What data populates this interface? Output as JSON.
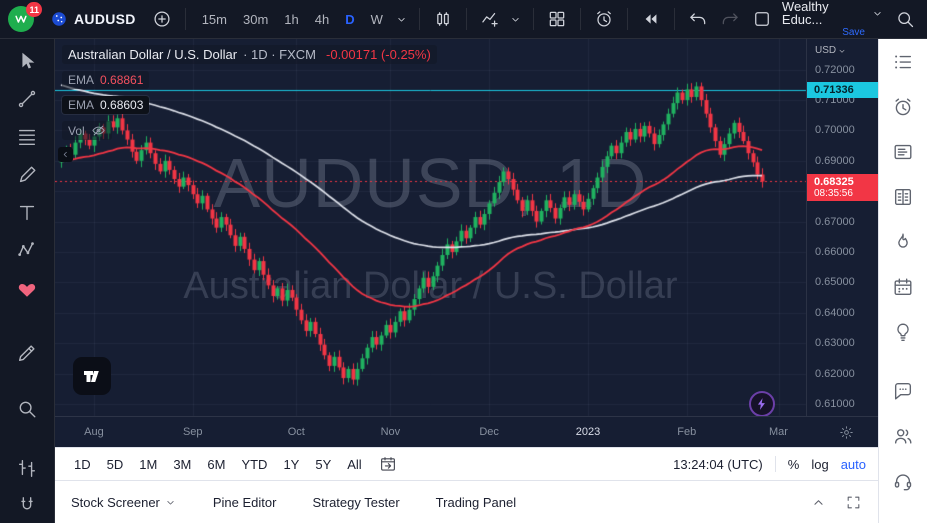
{
  "topbar": {
    "notification_count": "11",
    "symbol": "AUDUSD",
    "timeframes": [
      "15m",
      "30m",
      "1h",
      "4h",
      "D",
      "W"
    ],
    "active_timeframe": "D",
    "account_name": "Wealthy Educ...",
    "save_label": "Save",
    "icons": [
      "app-logo",
      "plus-circle",
      "chevron-down",
      "candles",
      "indicators",
      "layout-grid",
      "alert-clock",
      "replay",
      "undo",
      "redo",
      "layout-square",
      "search"
    ]
  },
  "left_toolbar": {
    "icons": [
      "cursor",
      "trend-line",
      "fib-retracement",
      "brush",
      "text",
      "xabcd-pattern",
      "emoji-heart",
      "ruler-pencil",
      "zoom",
      "bars-pattern",
      "magnet"
    ]
  },
  "right_sidebar": {
    "icons": [
      "watchlist",
      "alert-clock",
      "data-window",
      "dom",
      "flame",
      "calendar",
      "idea-bulb",
      "chat",
      "people",
      "headset"
    ]
  },
  "chart": {
    "legend": {
      "title": "Australian Dollar / U.S. Dollar",
      "meta": "· 1D · FXCM",
      "change": "-0.00171 (-0.25%)",
      "ema1_label": "EMA",
      "ema1_value": "0.68861",
      "ema2_label": "EMA",
      "ema2_value": "0.68603",
      "vol_label": "Vol"
    },
    "watermark_line1": "AUDUSD, 1D",
    "watermark_line2": "Australian Dollar / U.S. Dollar",
    "axis_currency": "USD",
    "price_labels": [
      "0.72000",
      "0.71000",
      "0.70000",
      "0.69000",
      "0.68000",
      "0.67000",
      "0.66000",
      "0.65000",
      "0.64000",
      "0.63000",
      "0.62000",
      "0.61000"
    ],
    "badges": {
      "upper_price": "0.71336",
      "last_price": "0.68325",
      "countdown": "08:35:56"
    },
    "time_labels": [
      "Aug",
      "Sep",
      "Oct",
      "Nov",
      "Dec",
      "2023",
      "Feb",
      "Mar"
    ]
  },
  "chart_data": {
    "type": "candlestick",
    "symbol": "AUDUSD",
    "interval": "1D",
    "price_range": {
      "min": 0.607,
      "max": 0.7245
    },
    "closes": [
      0.691,
      0.694,
      0.692,
      0.696,
      0.699,
      0.697,
      0.695,
      0.698,
      0.701,
      0.699,
      0.703,
      0.701,
      0.704,
      0.7,
      0.697,
      0.693,
      0.69,
      0.6935,
      0.696,
      0.6925,
      0.689,
      0.6865,
      0.69,
      0.687,
      0.684,
      0.6815,
      0.6845,
      0.682,
      0.679,
      0.676,
      0.6785,
      0.674,
      0.671,
      0.668,
      0.6715,
      0.669,
      0.6655,
      0.662,
      0.665,
      0.661,
      0.6575,
      0.654,
      0.657,
      0.6525,
      0.649,
      0.6455,
      0.648,
      0.644,
      0.6475,
      0.645,
      0.641,
      0.6375,
      0.634,
      0.637,
      0.633,
      0.6295,
      0.626,
      0.6225,
      0.6255,
      0.622,
      0.6185,
      0.6215,
      0.618,
      0.6215,
      0.625,
      0.6285,
      0.632,
      0.6295,
      0.6325,
      0.636,
      0.6335,
      0.637,
      0.6405,
      0.6375,
      0.641,
      0.6445,
      0.648,
      0.6515,
      0.6485,
      0.652,
      0.6555,
      0.659,
      0.6625,
      0.66,
      0.6635,
      0.667,
      0.6645,
      0.668,
      0.6715,
      0.669,
      0.6725,
      0.676,
      0.6795,
      0.683,
      0.6865,
      0.684,
      0.6805,
      0.677,
      0.6735,
      0.677,
      0.6735,
      0.67,
      0.6735,
      0.677,
      0.6745,
      0.671,
      0.6745,
      0.678,
      0.6755,
      0.679,
      0.6765,
      0.674,
      0.6775,
      0.681,
      0.6845,
      0.688,
      0.6915,
      0.695,
      0.6925,
      0.696,
      0.6995,
      0.697,
      0.7005,
      0.698,
      0.7015,
      0.699,
      0.6955,
      0.6985,
      0.702,
      0.7055,
      0.709,
      0.7125,
      0.71,
      0.7135,
      0.711,
      0.7145,
      0.71,
      0.7055,
      0.701,
      0.6965,
      0.692,
      0.6955,
      0.699,
      0.7025,
      0.6995,
      0.6965,
      0.6925,
      0.6895,
      0.6855,
      0.6832
    ],
    "month_ticks": [
      {
        "label": "Aug",
        "i": 7
      },
      {
        "label": "Sep",
        "i": 28
      },
      {
        "label": "Oct",
        "i": 50
      },
      {
        "label": "Nov",
        "i": 70
      },
      {
        "label": "Dec",
        "i": 91
      },
      {
        "label": "2023",
        "i": 112
      },
      {
        "label": "Feb",
        "i": 133
      },
      {
        "label": "Mar",
        "i": 152.5
      }
    ],
    "lines": {
      "upper": {
        "price": 0.71336,
        "color": "#1bc7e0",
        "style": "solid"
      },
      "last": {
        "price": 0.68325,
        "color": "#f23645",
        "style": "dotted"
      }
    },
    "emas": {
      "fast": {
        "seed": 0.69,
        "period": 40,
        "color": "#f23645",
        "label_value": 0.68861
      },
      "slow": {
        "seed": 0.7155,
        "period": 90,
        "color": "#e8ebf3",
        "label_value": 0.68603
      }
    },
    "colors": {
      "up": "#20b260",
      "down": "#f23645"
    }
  },
  "rangebar": {
    "ranges": [
      "1D",
      "5D",
      "1M",
      "3M",
      "6M",
      "YTD",
      "1Y",
      "5Y",
      "All"
    ],
    "clock": "13:24:04 (UTC)",
    "percent_label": "%",
    "log_label": "log",
    "auto_label": "auto"
  },
  "bottom_panel": {
    "items": [
      "Stock Screener",
      "Pine Editor",
      "Strategy Tester",
      "Trading Panel"
    ]
  }
}
